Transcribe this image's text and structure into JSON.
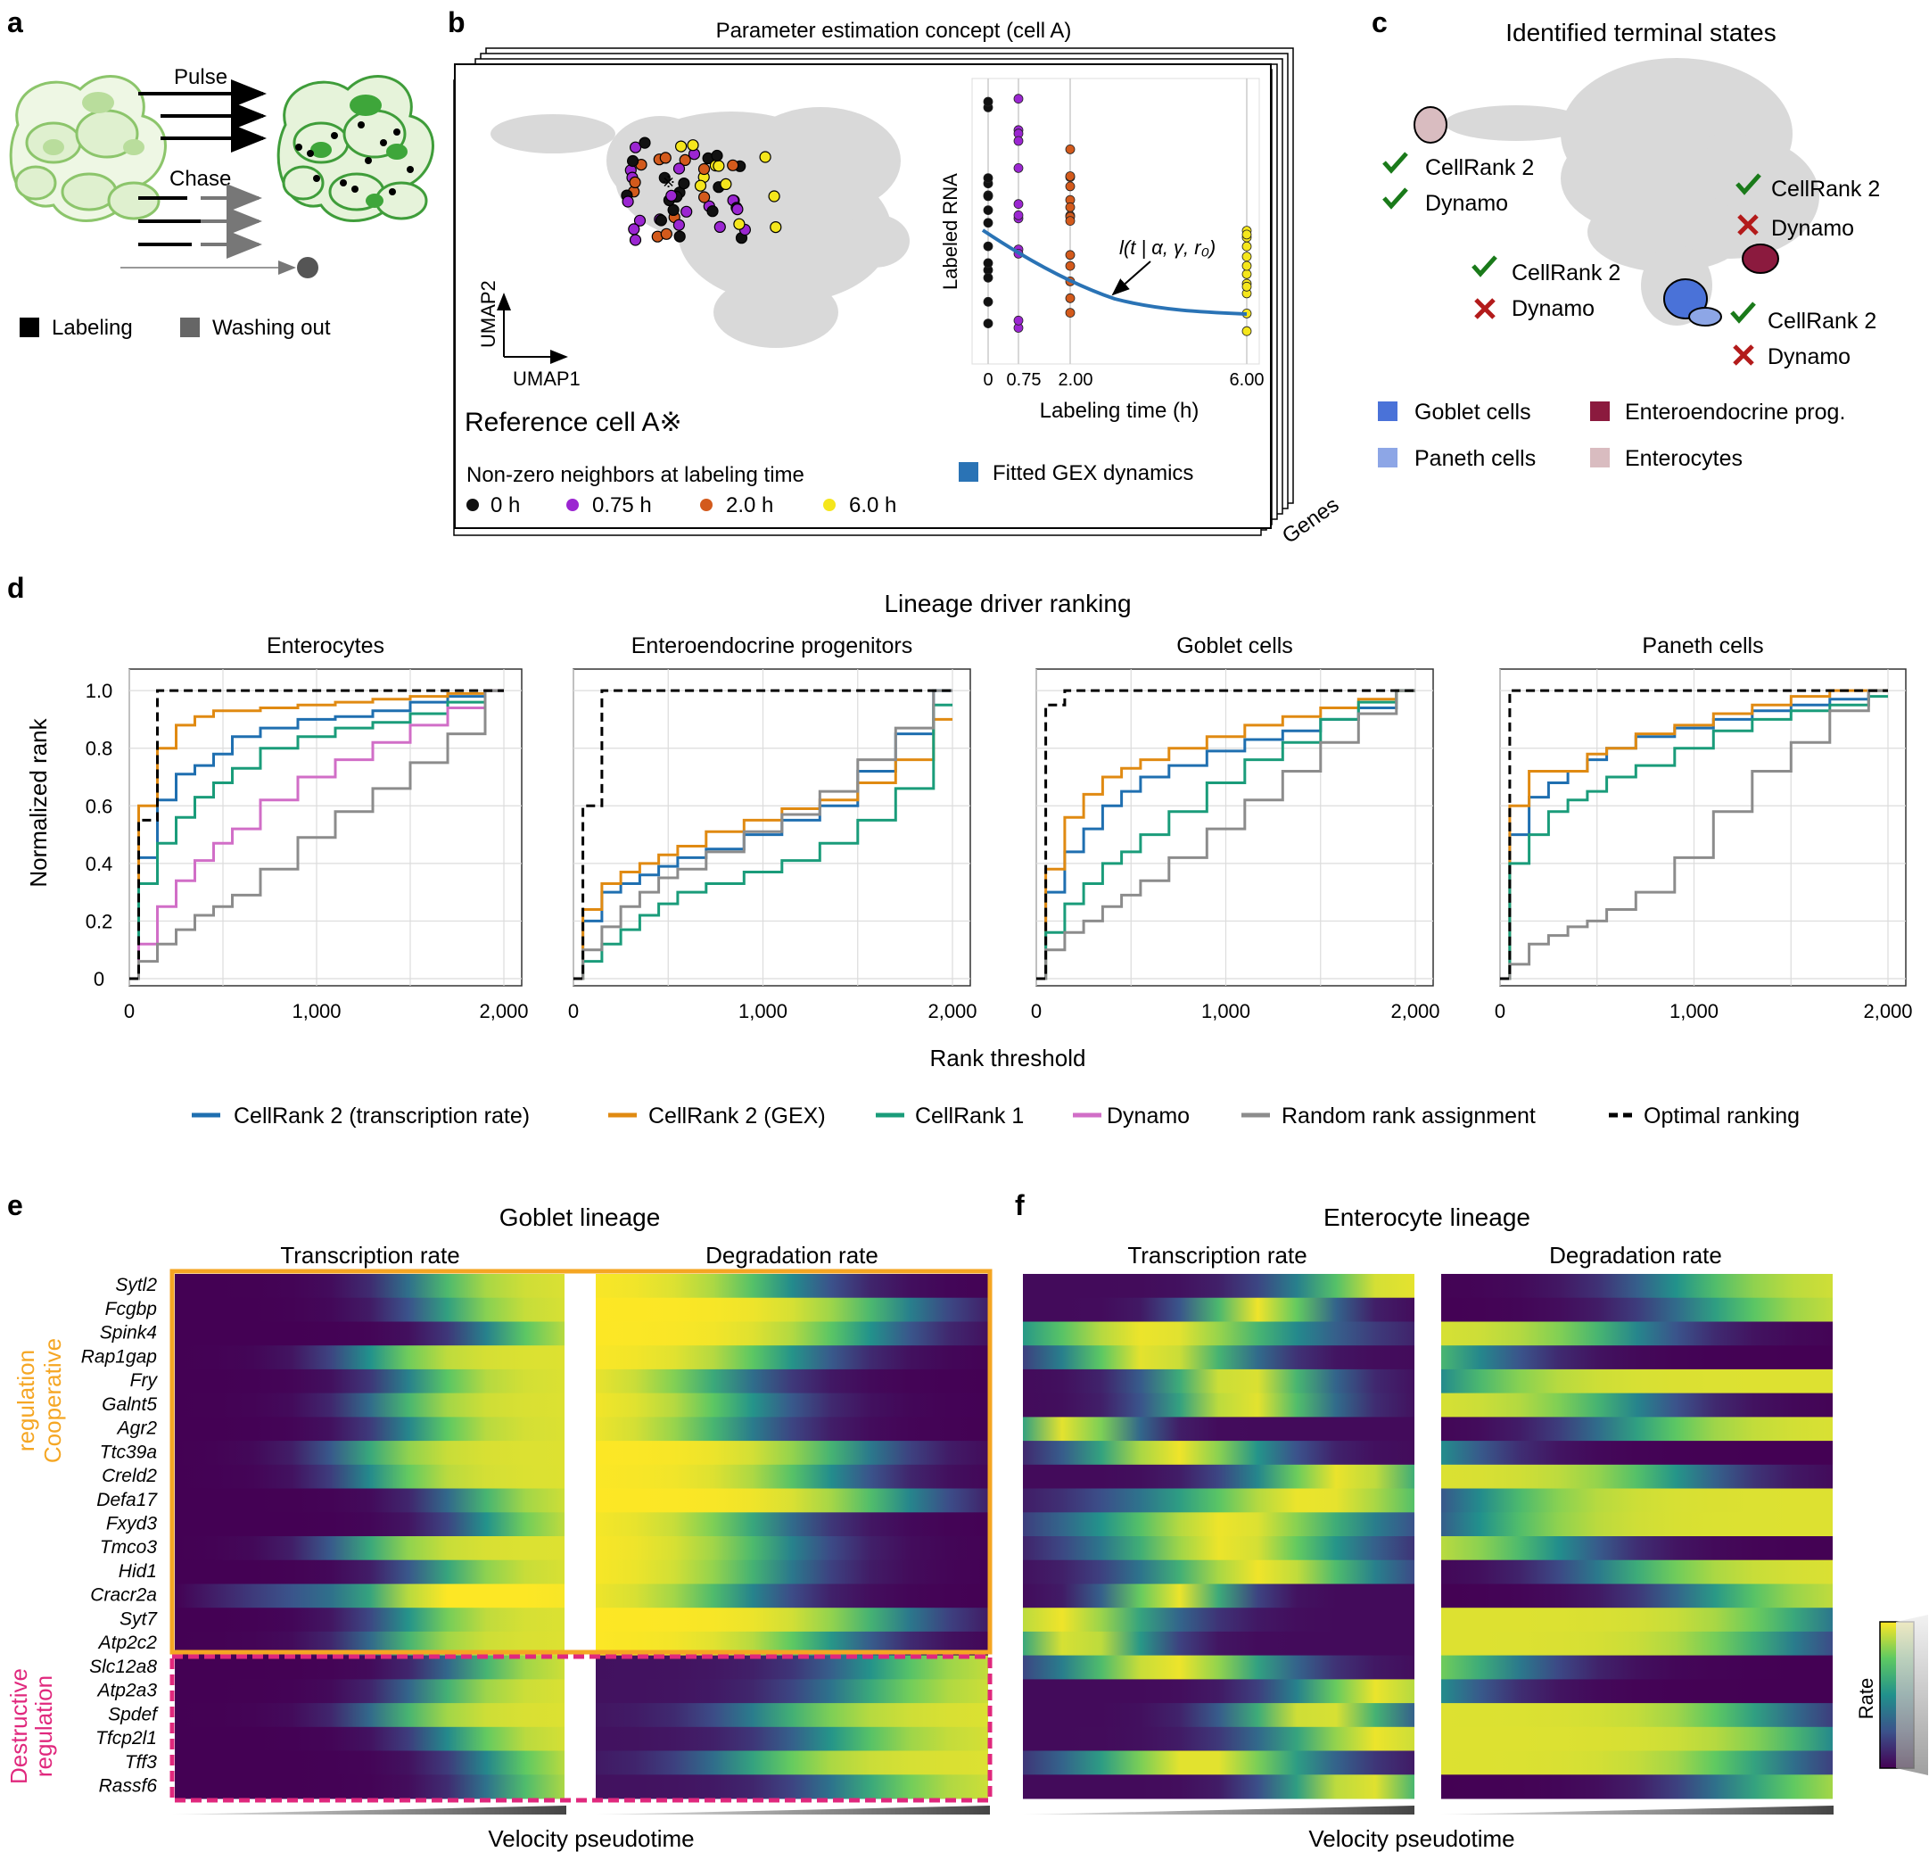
{
  "panel_letters": {
    "a": "a",
    "b": "b",
    "c": "c",
    "d": "d",
    "e": "e",
    "f": "f"
  },
  "panel_a": {
    "pulse": "Pulse",
    "chase": "Chase",
    "legend": [
      {
        "label": "Labeling",
        "color": "#000000"
      },
      {
        "label": "Washing out",
        "color": "#666666"
      }
    ]
  },
  "panel_b": {
    "title": "Parameter estimation concept (cell A)",
    "umap_x": "UMAP1",
    "umap_y": "UMAP2",
    "reference": "Reference cell A※",
    "neighbors_title": "Non-zero neighbors at labeling time",
    "neighbors": [
      {
        "label": "0 h",
        "color": "#111111"
      },
      {
        "label": "0.75 h",
        "color": "#9b26d1"
      },
      {
        "label": "2.0 h",
        "color": "#d35a1c"
      },
      {
        "label": "6.0 h",
        "color": "#f5e61c"
      }
    ],
    "fitted_label": "Fitted GEX dynamics",
    "fitted_color": "#2a73b5",
    "stack_label": "Genes",
    "inset": {
      "ylabel": "Labeled RNA",
      "xlabel": "Labeling time (h)",
      "ticks": [
        "0",
        "0.75",
        "2.00",
        "6.00"
      ],
      "formula": "l(t | α, γ, r₀)"
    }
  },
  "panel_c": {
    "title": "Identified terminal states",
    "annotations": [
      {
        "lines": [
          "CellRank 2",
          "Dynamo"
        ],
        "marks": [
          "check",
          "check"
        ]
      },
      {
        "lines": [
          "CellRank 2",
          "Dynamo"
        ],
        "marks": [
          "check",
          "cross"
        ]
      },
      {
        "lines": [
          "CellRank 2",
          "Dynamo"
        ],
        "marks": [
          "check",
          "cross"
        ]
      },
      {
        "lines": [
          "CellRank 2",
          "Dynamo"
        ],
        "marks": [
          "check",
          "cross"
        ]
      }
    ],
    "legend": [
      {
        "label": "Goblet cells",
        "color": "#4a72d8"
      },
      {
        "label": "Enteroendocrine prog.",
        "color": "#8b1a3e"
      },
      {
        "label": "Paneth cells",
        "color": "#8da6e6"
      },
      {
        "label": "Enterocytes",
        "color": "#d9bcc0"
      }
    ]
  },
  "panel_d": {
    "title": "Lineage driver ranking",
    "xlabel": "Rank threshold",
    "ylabel": "Normalized rank",
    "yticks": [
      "0",
      "0.2",
      "0.4",
      "0.6",
      "0.8",
      "1.0"
    ],
    "xticks": [
      "0",
      "1,000",
      "2,000"
    ],
    "legend": [
      {
        "label": "CellRank 2 (transcription rate)",
        "color": "#1f6fb0"
      },
      {
        "label": "CellRank 2 (GEX)",
        "color": "#e08a12"
      },
      {
        "label": "CellRank 1",
        "color": "#1a9c7a"
      },
      {
        "label": "Dynamo",
        "color": "#d16ec7"
      },
      {
        "label": "Random rank assignment",
        "color": "#8c8c8c"
      },
      {
        "label": "Optimal ranking",
        "color": "#000000"
      }
    ]
  },
  "chart_data": [
    {
      "type": "line",
      "title": "Enterocytes",
      "xlabel": "Rank threshold",
      "ylabel": "Normalized rank",
      "xlim": [
        0,
        2000
      ],
      "ylim": [
        0,
        1.05
      ],
      "grid": true,
      "x": [
        0,
        100,
        200,
        300,
        400,
        500,
        600,
        800,
        1000,
        1200,
        1400,
        1600,
        1800,
        2000
      ],
      "series": [
        {
          "name": "CellRank 2 (transcription rate)",
          "color": "#1f6fb0",
          "values": [
            0,
            0.42,
            0.62,
            0.71,
            0.74,
            0.78,
            0.84,
            0.87,
            0.9,
            0.91,
            0.93,
            0.96,
            0.98,
            1.0
          ]
        },
        {
          "name": "CellRank 2 (GEX)",
          "color": "#e08a12",
          "values": [
            0,
            0.6,
            0.8,
            0.88,
            0.91,
            0.93,
            0.93,
            0.94,
            0.95,
            0.96,
            0.97,
            0.98,
            0.99,
            1.0
          ]
        },
        {
          "name": "CellRank 1",
          "color": "#1a9c7a",
          "values": [
            0,
            0.33,
            0.47,
            0.56,
            0.63,
            0.68,
            0.73,
            0.8,
            0.84,
            0.87,
            0.89,
            0.92,
            0.96,
            1.0
          ]
        },
        {
          "name": "Dynamo",
          "color": "#d16ec7",
          "values": [
            0,
            0.12,
            0.25,
            0.34,
            0.41,
            0.47,
            0.52,
            0.62,
            0.7,
            0.76,
            0.82,
            0.88,
            0.94,
            1.0
          ]
        },
        {
          "name": "Random rank assignment",
          "color": "#8c8c8c",
          "values": [
            0,
            0.06,
            0.12,
            0.17,
            0.22,
            0.25,
            0.29,
            0.38,
            0.49,
            0.58,
            0.66,
            0.75,
            0.85,
            1.0
          ]
        },
        {
          "name": "Optimal ranking",
          "color": "#000000",
          "dashed": true,
          "values": [
            0,
            0.55,
            1.0,
            1.0,
            1.0,
            1.0,
            1.0,
            1.0,
            1.0,
            1.0,
            1.0,
            1.0,
            1.0,
            1.0
          ]
        }
      ]
    },
    {
      "type": "line",
      "title": "Enteroendocrine progenitors",
      "xlabel": "Rank threshold",
      "ylabel": "Normalized rank",
      "xlim": [
        0,
        2000
      ],
      "ylim": [
        0,
        1.05
      ],
      "grid": true,
      "x": [
        0,
        100,
        200,
        300,
        400,
        500,
        600,
        800,
        1000,
        1200,
        1400,
        1600,
        1800,
        2000
      ],
      "series": [
        {
          "name": "CellRank 2 (transcription rate)",
          "color": "#1f6fb0",
          "values": [
            0,
            0.2,
            0.3,
            0.33,
            0.36,
            0.39,
            0.42,
            0.45,
            0.5,
            0.55,
            0.6,
            0.72,
            0.85,
            1.0
          ]
        },
        {
          "name": "CellRank 2 (GEX)",
          "color": "#e08a12",
          "values": [
            0,
            0.24,
            0.33,
            0.37,
            0.4,
            0.43,
            0.46,
            0.51,
            0.55,
            0.59,
            0.62,
            0.68,
            0.76,
            0.9
          ]
        },
        {
          "name": "CellRank 1",
          "color": "#1a9c7a",
          "values": [
            0,
            0.06,
            0.12,
            0.17,
            0.22,
            0.26,
            0.3,
            0.33,
            0.37,
            0.41,
            0.47,
            0.55,
            0.66,
            0.95
          ]
        },
        {
          "name": "Random rank assignment",
          "color": "#8c8c8c",
          "values": [
            0,
            0.1,
            0.18,
            0.25,
            0.3,
            0.35,
            0.38,
            0.44,
            0.51,
            0.57,
            0.65,
            0.76,
            0.87,
            1.0
          ]
        },
        {
          "name": "Optimal ranking",
          "color": "#000000",
          "dashed": true,
          "values": [
            0,
            0.6,
            1.0,
            1.0,
            1.0,
            1.0,
            1.0,
            1.0,
            1.0,
            1.0,
            1.0,
            1.0,
            1.0,
            1.0
          ]
        }
      ]
    },
    {
      "type": "line",
      "title": "Goblet cells",
      "xlabel": "Rank threshold",
      "ylabel": "Normalized rank",
      "xlim": [
        0,
        2000
      ],
      "ylim": [
        0,
        1.05
      ],
      "grid": true,
      "x": [
        0,
        100,
        200,
        300,
        400,
        500,
        600,
        800,
        1000,
        1200,
        1400,
        1600,
        1800,
        2000
      ],
      "series": [
        {
          "name": "CellRank 2 (transcription rate)",
          "color": "#1f6fb0",
          "values": [
            0,
            0.3,
            0.44,
            0.52,
            0.6,
            0.65,
            0.7,
            0.74,
            0.79,
            0.83,
            0.86,
            0.9,
            0.94,
            1.0
          ]
        },
        {
          "name": "CellRank 2 (GEX)",
          "color": "#e08a12",
          "values": [
            0,
            0.38,
            0.56,
            0.64,
            0.7,
            0.73,
            0.76,
            0.8,
            0.84,
            0.88,
            0.91,
            0.94,
            0.97,
            1.0
          ]
        },
        {
          "name": "CellRank 1",
          "color": "#1a9c7a",
          "values": [
            0,
            0.16,
            0.26,
            0.33,
            0.4,
            0.44,
            0.5,
            0.58,
            0.68,
            0.76,
            0.82,
            0.9,
            0.96,
            1.0
          ]
        },
        {
          "name": "Random rank assignment",
          "color": "#8c8c8c",
          "values": [
            0,
            0.1,
            0.16,
            0.2,
            0.25,
            0.29,
            0.34,
            0.42,
            0.52,
            0.62,
            0.72,
            0.82,
            0.92,
            1.0
          ]
        },
        {
          "name": "Optimal ranking",
          "color": "#000000",
          "dashed": true,
          "values": [
            0,
            0.95,
            1.0,
            1.0,
            1.0,
            1.0,
            1.0,
            1.0,
            1.0,
            1.0,
            1.0,
            1.0,
            1.0,
            1.0
          ]
        }
      ]
    },
    {
      "type": "line",
      "title": "Paneth cells",
      "xlabel": "Rank threshold",
      "ylabel": "Normalized rank",
      "xlim": [
        0,
        2000
      ],
      "ylim": [
        0,
        1.05
      ],
      "grid": true,
      "x": [
        0,
        100,
        200,
        300,
        400,
        500,
        600,
        800,
        1000,
        1200,
        1400,
        1600,
        1800,
        2000
      ],
      "series": [
        {
          "name": "CellRank 2 (transcription rate)",
          "color": "#1f6fb0",
          "values": [
            0,
            0.5,
            0.63,
            0.68,
            0.72,
            0.76,
            0.8,
            0.84,
            0.87,
            0.9,
            0.93,
            0.95,
            0.97,
            1.0
          ]
        },
        {
          "name": "CellRank 2 (GEX)",
          "color": "#e08a12",
          "values": [
            0,
            0.6,
            0.72,
            0.72,
            0.72,
            0.78,
            0.8,
            0.85,
            0.88,
            0.92,
            0.95,
            0.98,
            1.0,
            1.0
          ]
        },
        {
          "name": "CellRank 1",
          "color": "#1a9c7a",
          "values": [
            0,
            0.4,
            0.5,
            0.58,
            0.62,
            0.65,
            0.7,
            0.74,
            0.8,
            0.86,
            0.9,
            0.93,
            0.95,
            0.98
          ]
        },
        {
          "name": "Random rank assignment",
          "color": "#8c8c8c",
          "values": [
            0,
            0.05,
            0.12,
            0.15,
            0.18,
            0.2,
            0.24,
            0.3,
            0.42,
            0.58,
            0.72,
            0.82,
            0.93,
            1.0
          ]
        },
        {
          "name": "Optimal ranking",
          "color": "#000000",
          "dashed": true,
          "values": [
            0,
            1.0,
            1.0,
            1.0,
            1.0,
            1.0,
            1.0,
            1.0,
            1.0,
            1.0,
            1.0,
            1.0,
            1.0,
            1.0
          ]
        }
      ]
    }
  ],
  "panel_e": {
    "title": "Goblet lineage",
    "col_titles": [
      "Transcription rate",
      "Degradation rate"
    ],
    "group_labels": [
      "Cooperative regulation",
      "Destructive regulation"
    ],
    "group_colors": [
      "#f5a623",
      "#e0287d"
    ],
    "genes": [
      "Sytl2",
      "Fcgbp",
      "Spink4",
      "Rap1gap",
      "Fry",
      "Galnt5",
      "Agr2",
      "Ttc39a",
      "Creld2",
      "Defa17",
      "Fxyd3",
      "Tmco3",
      "Hid1",
      "Cracr2a",
      "Syt7",
      "Atp2c2",
      "Slc12a8",
      "Atp2a3",
      "Spdef",
      "Tfcp2l1",
      "Tff3",
      "Rassf6"
    ],
    "xlabel": "Velocity pseudotime"
  },
  "panel_f": {
    "title": "Enterocyte lineage",
    "col_titles": [
      "Transcription rate",
      "Degradation rate"
    ],
    "xlabel": "Velocity pseudotime"
  },
  "colorbar": {
    "label": "Rate"
  }
}
